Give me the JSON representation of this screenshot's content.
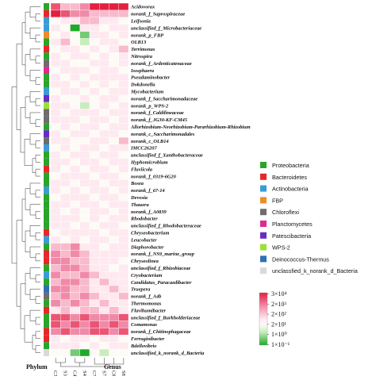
{
  "chart_data": {
    "type": "heatmap",
    "xlabel": "Genus",
    "ylabel": "Phylum",
    "columns": [
      "C3",
      "S3",
      "C4",
      "S4",
      "C7",
      "S7",
      "C8",
      "S8"
    ],
    "column_tree_groups": [
      [
        "C3",
        "S3"
      ],
      [
        "C4",
        "S4"
      ],
      [
        "C7",
        "S7",
        "C8",
        "S8"
      ]
    ],
    "rows": [
      {
        "genus": "Acidovorax",
        "phylum": "Proteobacteria",
        "values": [
          4,
          2,
          2,
          3,
          5,
          5,
          5,
          5
        ]
      },
      {
        "genus": "norank_f_Saprospiraceae",
        "phylum": "Bacteroidetes",
        "values": [
          5,
          4,
          3,
          3,
          2,
          2,
          2,
          2
        ]
      },
      {
        "genus": "Leifsonia",
        "phylum": "Actinobacteria",
        "values": [
          0,
          1,
          1,
          2,
          2,
          1,
          1,
          0
        ]
      },
      {
        "genus": "unclassified_f_Microbacteriaceae",
        "phylum": "Actinobacteria",
        "values": [
          1,
          0,
          -3,
          1,
          1,
          0,
          1,
          1
        ]
      },
      {
        "genus": "norank_p_FBP",
        "phylum": "FBP",
        "values": [
          0,
          1,
          0,
          -2,
          1,
          1,
          0,
          1
        ]
      },
      {
        "genus": "OLB13",
        "phylum": "Proteobacteria",
        "values": [
          1,
          2,
          0,
          -1,
          0,
          1,
          1,
          0
        ]
      },
      {
        "genus": "Terrimonas",
        "phylum": "Bacteroidetes",
        "values": [
          0,
          1,
          1,
          0,
          1,
          0,
          1,
          2
        ]
      },
      {
        "genus": "Nitrospira",
        "phylum": "Proteobacteria",
        "values": [
          1,
          0,
          1,
          1,
          0,
          1,
          0,
          1
        ]
      },
      {
        "genus": "norank_f_Ardenticatenaceae",
        "phylum": "Chloroflexi",
        "values": [
          1,
          1,
          0,
          0,
          1,
          1,
          0,
          1
        ]
      },
      {
        "genus": "Isosphaera",
        "phylum": "Planctomycetes",
        "values": [
          0,
          1,
          1,
          1,
          0,
          1,
          1,
          0
        ]
      },
      {
        "genus": "Pseudaminobacter",
        "phylum": "Proteobacteria",
        "values": [
          1,
          0,
          1,
          0,
          1,
          1,
          1,
          1
        ]
      },
      {
        "genus": "Dokdonella",
        "phylum": "Proteobacteria",
        "values": [
          1,
          1,
          0,
          1,
          0,
          1,
          0,
          1
        ]
      },
      {
        "genus": "Mycobacterium",
        "phylum": "Actinobacteria",
        "values": [
          0,
          1,
          1,
          0,
          1,
          0,
          1,
          1
        ]
      },
      {
        "genus": "norank_f_Saccharimonadaceae",
        "phylum": "Patescibacteria",
        "values": [
          1,
          0,
          0,
          1,
          0,
          1,
          1,
          0
        ]
      },
      {
        "genus": "norank_p_WPS-2",
        "phylum": "WPS-2",
        "values": [
          1,
          1,
          0,
          -1,
          0,
          1,
          0,
          1
        ]
      },
      {
        "genus": "norank_f_Caldilineaceae",
        "phylum": "Chloroflexi",
        "values": [
          1,
          0,
          1,
          1,
          1,
          0,
          1,
          1
        ]
      },
      {
        "genus": "norank_f_JG30-KF-CM45",
        "phylum": "Chloroflexi",
        "values": [
          1,
          1,
          1,
          0,
          1,
          1,
          0,
          1
        ]
      },
      {
        "genus": "Allorhizobium-Neorhizobium-Pararhizobium-Rhizobium",
        "phylum": "Proteobacteria",
        "values": [
          0,
          1,
          0,
          1,
          1,
          0,
          1,
          1
        ]
      },
      {
        "genus": "norank_c_Saccharimonadales",
        "phylum": "Patescibacteria",
        "values": [
          1,
          0,
          1,
          1,
          0,
          1,
          1,
          0
        ]
      },
      {
        "genus": "norank_c_OLB14",
        "phylum": "Chloroflexi",
        "values": [
          1,
          1,
          0,
          0,
          1,
          1,
          0,
          2
        ]
      },
      {
        "genus": "IMCC26207",
        "phylum": "Actinobacteria",
        "values": [
          0,
          1,
          0,
          1,
          1,
          0,
          1,
          1
        ]
      },
      {
        "genus": "unclassified_f_Xanthobacteraceae",
        "phylum": "Proteobacteria",
        "values": [
          1,
          0,
          1,
          1,
          0,
          1,
          1,
          0
        ]
      },
      {
        "genus": "Hyphomicrobium",
        "phylum": "Proteobacteria",
        "values": [
          1,
          1,
          0,
          1,
          1,
          0,
          1,
          1
        ]
      },
      {
        "genus": "Fluviicola",
        "phylum": "Bacteroidetes",
        "values": [
          1,
          0,
          1,
          0,
          1,
          1,
          0,
          1
        ]
      },
      {
        "genus": "norank_f_0319-6G20",
        "phylum": "Proteobacteria",
        "values": [
          0,
          1,
          1,
          1,
          0,
          1,
          1,
          0
        ]
      },
      {
        "genus": "Bosea",
        "phylum": "Proteobacteria",
        "values": [
          1,
          1,
          0,
          1,
          1,
          0,
          1,
          1
        ]
      },
      {
        "genus": "norank_f_67-14",
        "phylum": "Actinobacteria",
        "values": [
          1,
          0,
          1,
          0,
          1,
          1,
          0,
          1
        ]
      },
      {
        "genus": "Devosia",
        "phylum": "Proteobacteria",
        "values": [
          0,
          1,
          1,
          1,
          0,
          1,
          1,
          0
        ]
      },
      {
        "genus": "Thauera",
        "phylum": "Proteobacteria",
        "values": [
          1,
          1,
          0,
          1,
          1,
          0,
          1,
          1
        ]
      },
      {
        "genus": "norank_f_A0839",
        "phylum": "Proteobacteria",
        "values": [
          1,
          0,
          1,
          0,
          1,
          1,
          0,
          1
        ]
      },
      {
        "genus": "Rhodobacter",
        "phylum": "Proteobacteria",
        "values": [
          1,
          1,
          1,
          0,
          1,
          0,
          1,
          1
        ]
      },
      {
        "genus": "unclassified_f_Rhodobacteraceae",
        "phylum": "Proteobacteria",
        "values": [
          1,
          1,
          0,
          1,
          0,
          1,
          1,
          0
        ]
      },
      {
        "genus": "Chryseobacterium",
        "phylum": "Bacteroidetes",
        "values": [
          0,
          1,
          1,
          1,
          1,
          0,
          1,
          1
        ]
      },
      {
        "genus": "Leucobacter",
        "phylum": "Actinobacteria",
        "values": [
          1,
          0,
          1,
          0,
          1,
          1,
          0,
          1
        ]
      },
      {
        "genus": "Diaphorobacter",
        "phylum": "Proteobacteria",
        "values": [
          2,
          2,
          3,
          1,
          1,
          0,
          1,
          1
        ]
      },
      {
        "genus": "norank_f_NS9_marine_group",
        "phylum": "Bacteroidetes",
        "values": [
          3,
          2,
          3,
          2,
          1,
          1,
          1,
          1
        ]
      },
      {
        "genus": "Chryseolinea",
        "phylum": "Bacteroidetes",
        "values": [
          3,
          3,
          2,
          2,
          1,
          1,
          1,
          0
        ]
      },
      {
        "genus": "unclassified_f_Rhizobiaceae",
        "phylum": "Proteobacteria",
        "values": [
          2,
          3,
          3,
          2,
          1,
          1,
          0,
          1
        ]
      },
      {
        "genus": "Cryobacterium",
        "phylum": "Actinobacteria",
        "values": [
          3,
          2,
          2,
          3,
          2,
          1,
          1,
          1
        ]
      },
      {
        "genus": "Candidatus_Paracaedibacter",
        "phylum": "Proteobacteria",
        "values": [
          2,
          3,
          3,
          2,
          1,
          2,
          1,
          1
        ]
      },
      {
        "genus": "Truepera",
        "phylum": "Deinococcus-Thermus",
        "values": [
          3,
          3,
          2,
          2,
          1,
          1,
          2,
          1
        ]
      },
      {
        "genus": "norank_f_A4b",
        "phylum": "Chloroflexi",
        "values": [
          2,
          3,
          2,
          3,
          2,
          1,
          1,
          2
        ]
      },
      {
        "genus": "Thermomonas",
        "phylum": "Proteobacteria",
        "values": [
          3,
          2,
          3,
          2,
          1,
          2,
          1,
          1
        ]
      },
      {
        "genus": "Flavihumibacter",
        "phylum": "Bacteroidetes",
        "values": [
          1,
          2,
          1,
          2,
          2,
          1,
          2,
          1
        ]
      },
      {
        "genus": "unclassified_f_Burkholderiaceae",
        "phylum": "Proteobacteria",
        "values": [
          4,
          4,
          3,
          4,
          3,
          3,
          3,
          4
        ]
      },
      {
        "genus": "Comamonas",
        "phylum": "Proteobacteria",
        "values": [
          4,
          3,
          4,
          3,
          4,
          3,
          4,
          3
        ]
      },
      {
        "genus": "norank_f_Chitinophagaceae",
        "phylum": "Bacteroidetes",
        "values": [
          3,
          4,
          3,
          3,
          4,
          4,
          3,
          4
        ]
      },
      {
        "genus": "Ferruginibacter",
        "phylum": "Bacteroidetes",
        "values": [
          1,
          0,
          1,
          1,
          0,
          1,
          1,
          0
        ]
      },
      {
        "genus": "Bdellovibrio",
        "phylum": "Proteobacteria",
        "values": [
          1,
          1,
          1,
          0,
          1,
          0,
          1,
          1
        ]
      },
      {
        "genus": "unclassified_k_norank_d_Bacteria",
        "phylum": "unclassfied_k_norank_d_Bacteria",
        "values": [
          0,
          0,
          -2,
          -3,
          0,
          -1,
          0,
          0
        ]
      }
    ],
    "phylum_legend": [
      {
        "name": "Proteobacteria",
        "color": "#2aa52a"
      },
      {
        "name": "Bacteroidetes",
        "color": "#e7262b"
      },
      {
        "name": "Actinobacteria",
        "color": "#3a9bd9"
      },
      {
        "name": "FBP",
        "color": "#f08b2a"
      },
      {
        "name": "Chloroflexi",
        "color": "#6d6d6d"
      },
      {
        "name": "Planctomycetes",
        "color": "#e02a8c"
      },
      {
        "name": "Patescibacteria",
        "color": "#6a2bc4"
      },
      {
        "name": "WPS-2",
        "color": "#9adf3c"
      },
      {
        "name": "Deinococcus-Thermus",
        "color": "#2f6fb3"
      },
      {
        "name": "unclassfied_k_norank_d_Bacteria",
        "color": "#d9d9d9"
      }
    ],
    "color_scale": {
      "labels": [
        "3×10⁴",
        "2×10³",
        "2×10²",
        "2×10¹",
        "1×10⁰",
        "1×10⁻¹"
      ],
      "stops": [
        {
          "level": 5,
          "color": "#e5203f"
        },
        {
          "level": 3,
          "color": "#f08aa8"
        },
        {
          "level": 1,
          "color": "#ffe9f0"
        },
        {
          "level": 0,
          "color": "#fdfbf5"
        },
        {
          "level": -1,
          "color": "#c9ecbd"
        },
        {
          "level": -3,
          "color": "#1eaa2a"
        }
      ],
      "range": [
        -3,
        5
      ]
    }
  }
}
